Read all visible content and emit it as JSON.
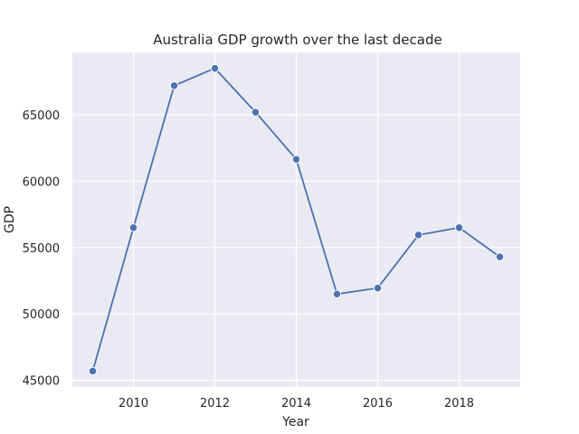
{
  "chart_data": {
    "type": "line",
    "title": "Australia GDP growth over the last decade",
    "xlabel": "Year",
    "ylabel": "GDP",
    "x": [
      2009,
      2010,
      2011,
      2012,
      2013,
      2014,
      2015,
      2016,
      2017,
      2018,
      2019
    ],
    "series": [
      {
        "values": [
          45700,
          56500,
          67200,
          68500,
          65200,
          61650,
          51500,
          51950,
          55950,
          56500,
          54300
        ]
      }
    ],
    "xlim": [
      2008.5,
      2019.5
    ],
    "ylim": [
      44500,
      69700
    ],
    "xticks": [
      2010,
      2012,
      2014,
      2016,
      2018
    ],
    "yticks": [
      45000,
      50000,
      55000,
      60000,
      65000
    ],
    "grid": true,
    "colors": {
      "background": "#eaeaf2",
      "grid": "#ffffff",
      "line": "#4c72b0",
      "text": "#262626"
    }
  }
}
